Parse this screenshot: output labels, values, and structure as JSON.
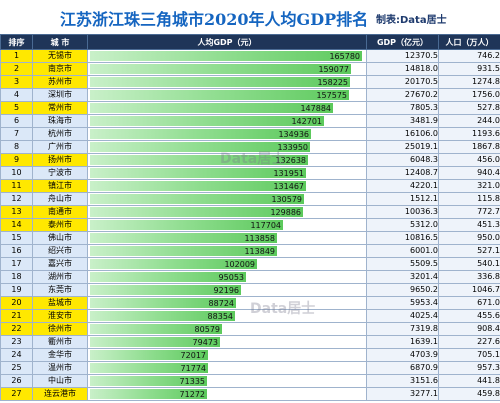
{
  "header": {
    "title": "江苏浙江珠三角城市2020年人均GDP排名",
    "credit": "制表:Data居士"
  },
  "columns": [
    "排序",
    "城 市",
    "人均GDP（元）",
    "GDP（亿元）",
    "人口（万人）"
  ],
  "watermark": "Data居士",
  "colors": {
    "header_bg": "#1f3558",
    "highlight": "#ffe800",
    "alt_row": "#dbe8f8",
    "bar": "#5cc95c",
    "title": "#1565c0"
  },
  "chart_data": {
    "type": "bar",
    "title": "江苏浙江珠三角城市2020年人均GDP排名",
    "ylabel": "人均GDP（元）",
    "categories": [
      "无锡市",
      "南京市",
      "苏州市",
      "深圳市",
      "常州市",
      "珠海市",
      "杭州市",
      "广州市",
      "扬州市",
      "宁波市",
      "镇江市",
      "舟山市",
      "南通市",
      "泰州市",
      "佛山市",
      "绍兴市",
      "嘉兴市",
      "湖州市",
      "东莞市",
      "盐城市",
      "淮安市",
      "徐州市",
      "衢州市",
      "金华市",
      "温州市",
      "中山市",
      "连云港市"
    ],
    "values": [
      165780,
      159077,
      158225,
      157575,
      147884,
      142701,
      134936,
      133950,
      132638,
      131951,
      131467,
      130579,
      129886,
      117704,
      113858,
      113849,
      102009,
      95053,
      92196,
      88724,
      88354,
      80579,
      79473,
      72017,
      71774,
      71335,
      71272
    ],
    "series": [
      {
        "name": "GDP（亿元）",
        "values": [
          12370.5,
          14818.0,
          20170.5,
          27670.2,
          7805.3,
          3481.9,
          16106.0,
          25019.1,
          6048.3,
          12408.7,
          4220.1,
          1512.1,
          10036.3,
          5312.0,
          10816.5,
          6001.0,
          5509.5,
          3201.4,
          9650.2,
          5953.4,
          4025.4,
          7319.8,
          1639.1,
          4703.9,
          6870.9,
          3151.6,
          3277.1
        ]
      },
      {
        "name": "人口（万人）",
        "values": [
          746.2,
          931.5,
          1274.8,
          1756.0,
          527.8,
          244.0,
          1193.6,
          1867.8,
          456.0,
          940.4,
          321.0,
          115.8,
          772.7,
          451.3,
          950.0,
          527.1,
          540.1,
          336.8,
          1046.7,
          671.0,
          455.6,
          908.4,
          227.6,
          705.1,
          957.3,
          441.8,
          459.8
        ]
      }
    ],
    "ranks": [
      "1",
      "2",
      "3",
      "4",
      "5",
      "6",
      "7",
      "8",
      "9",
      "10",
      "11",
      "12",
      "13",
      "14",
      "15",
      "16",
      "17",
      "18",
      "19",
      "20",
      "21",
      "22",
      "23",
      "24",
      "25",
      "26",
      "27"
    ],
    "highlight": [
      true,
      true,
      true,
      false,
      true,
      false,
      false,
      false,
      true,
      false,
      true,
      false,
      true,
      true,
      false,
      false,
      false,
      false,
      false,
      true,
      true,
      true,
      false,
      false,
      false,
      false,
      true
    ],
    "xlim": [
      0,
      165780
    ]
  }
}
